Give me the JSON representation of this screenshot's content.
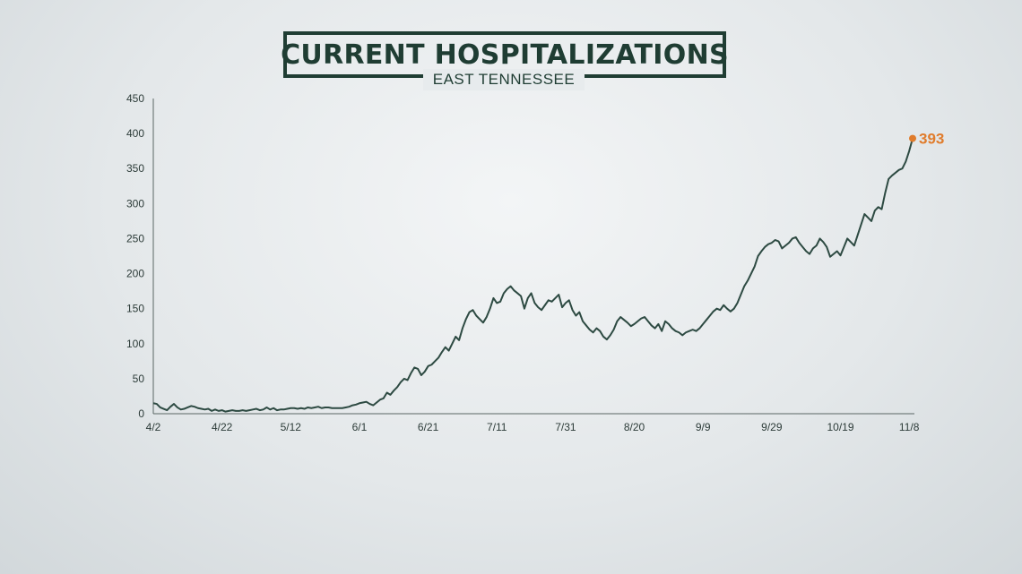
{
  "header": {
    "title": "CURRENT HOSPITALIZATIONS",
    "subtitle": "EAST TENNESSEE"
  },
  "colors": {
    "line": "#2d4a42",
    "highlight": "#e07c2c",
    "title": "#1f3d33"
  },
  "chart_data": {
    "type": "line",
    "title": "CURRENT HOSPITALIZATIONS",
    "subtitle": "EAST TENNESSEE",
    "xlabel": "",
    "ylabel": "",
    "ylim": [
      0,
      450
    ],
    "yticks": [
      0,
      50,
      100,
      150,
      200,
      250,
      300,
      350,
      400,
      450
    ],
    "x_start": "4/2",
    "x_tick_labels": [
      "4/2",
      "4/22",
      "5/12",
      "6/1",
      "6/21",
      "7/11",
      "7/31",
      "8/20",
      "9/9",
      "9/29",
      "10/19",
      "11/8"
    ],
    "grid": false,
    "legend": "none",
    "latest_label": "393",
    "series": [
      {
        "values": [
          15,
          14,
          9,
          7,
          5,
          10,
          14,
          9,
          6,
          7,
          9,
          11,
          10,
          8,
          7,
          6,
          7,
          4,
          6,
          4,
          5,
          3,
          4,
          5,
          4,
          4,
          5,
          4,
          5,
          6,
          7,
          5,
          6,
          9,
          6,
          8,
          5,
          6,
          6,
          7,
          8,
          8,
          7,
          8,
          7,
          9,
          8,
          9,
          10,
          8,
          9,
          9,
          8,
          8,
          8,
          8,
          9,
          10,
          12,
          13,
          15,
          16,
          17,
          14,
          12,
          16,
          20,
          22,
          30,
          27,
          33,
          38,
          45,
          50,
          48,
          58,
          66,
          64,
          55,
          60,
          68,
          70,
          75,
          80,
          88,
          95,
          90,
          100,
          110,
          105,
          122,
          135,
          145,
          148,
          140,
          135,
          130,
          138,
          150,
          165,
          158,
          160,
          172,
          178,
          182,
          176,
          172,
          168,
          150,
          165,
          172,
          158,
          152,
          148,
          155,
          162,
          160,
          165,
          170,
          152,
          158,
          162,
          148,
          140,
          145,
          132,
          126,
          120,
          116,
          122,
          118,
          110,
          106,
          112,
          120,
          132,
          138,
          134,
          130,
          125,
          128,
          132,
          136,
          138,
          132,
          126,
          122,
          128,
          118,
          132,
          128,
          122,
          118,
          116,
          112,
          116,
          118,
          120,
          118,
          122,
          128,
          134,
          140,
          146,
          150,
          148,
          155,
          150,
          146,
          150,
          158,
          170,
          182,
          190,
          200,
          210,
          225,
          232,
          238,
          242,
          244,
          248,
          246,
          236,
          240,
          244,
          250,
          252,
          244,
          238,
          232,
          228,
          236,
          240,
          250,
          245,
          238,
          224,
          228,
          232,
          226,
          238,
          250,
          245,
          240,
          255,
          270,
          285,
          280,
          275,
          290,
          295,
          292,
          315,
          335,
          340,
          344,
          348,
          350,
          360,
          375,
          393
        ]
      }
    ]
  }
}
